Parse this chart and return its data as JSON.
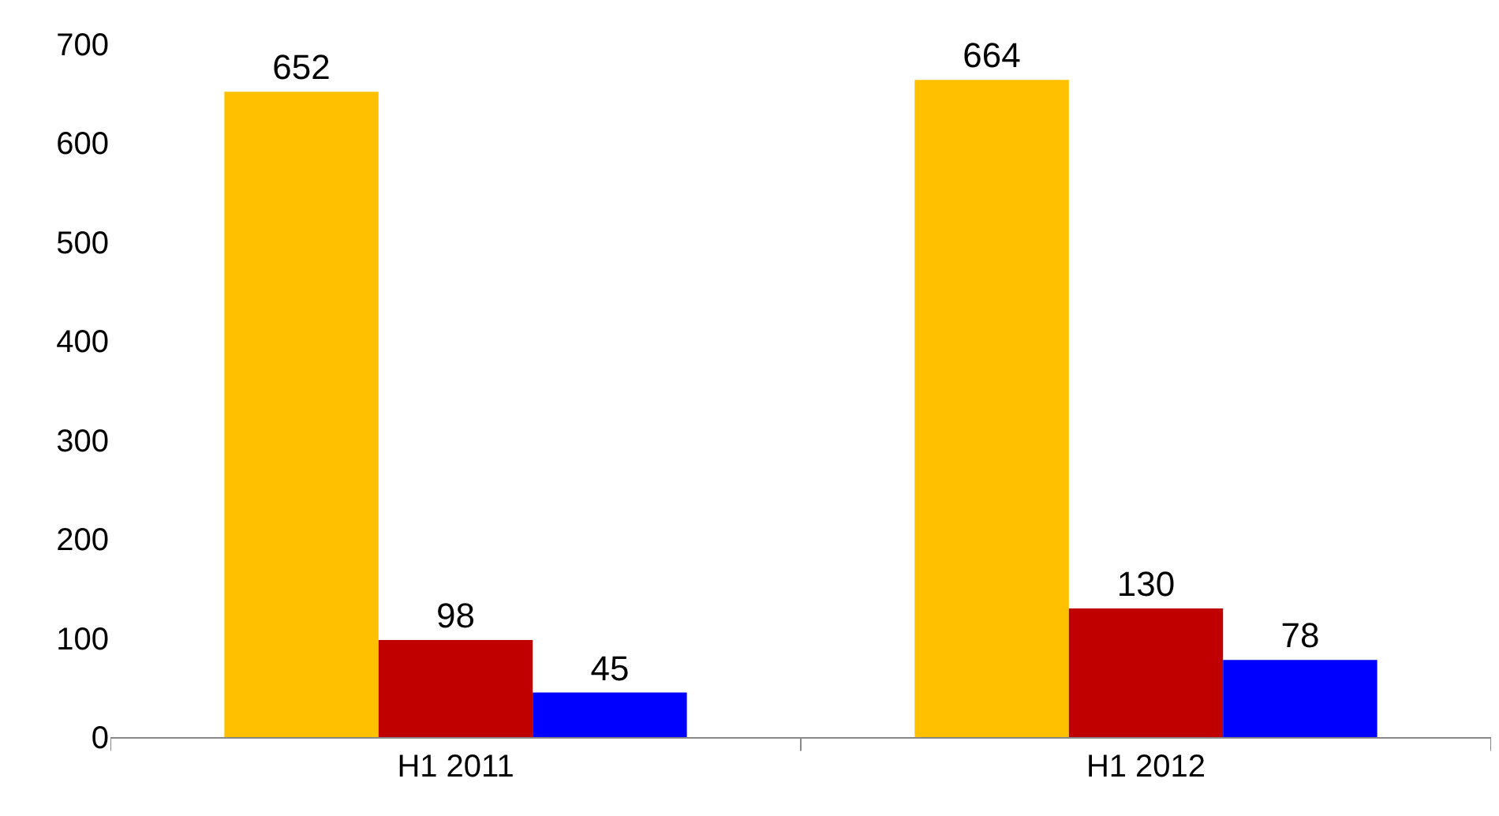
{
  "chart_data": {
    "type": "bar",
    "categories": [
      "H1 2011",
      "H1 2012"
    ],
    "series": [
      {
        "color": "#ffc000",
        "values": [
          652,
          664
        ]
      },
      {
        "color": "#c00000",
        "values": [
          98,
          130
        ]
      },
      {
        "color": "#0000ff",
        "values": [
          45,
          78
        ]
      }
    ],
    "ylim": [
      0,
      700
    ],
    "yticks": [
      0,
      100,
      200,
      300,
      400,
      500,
      600,
      700
    ],
    "data_labels": true
  }
}
